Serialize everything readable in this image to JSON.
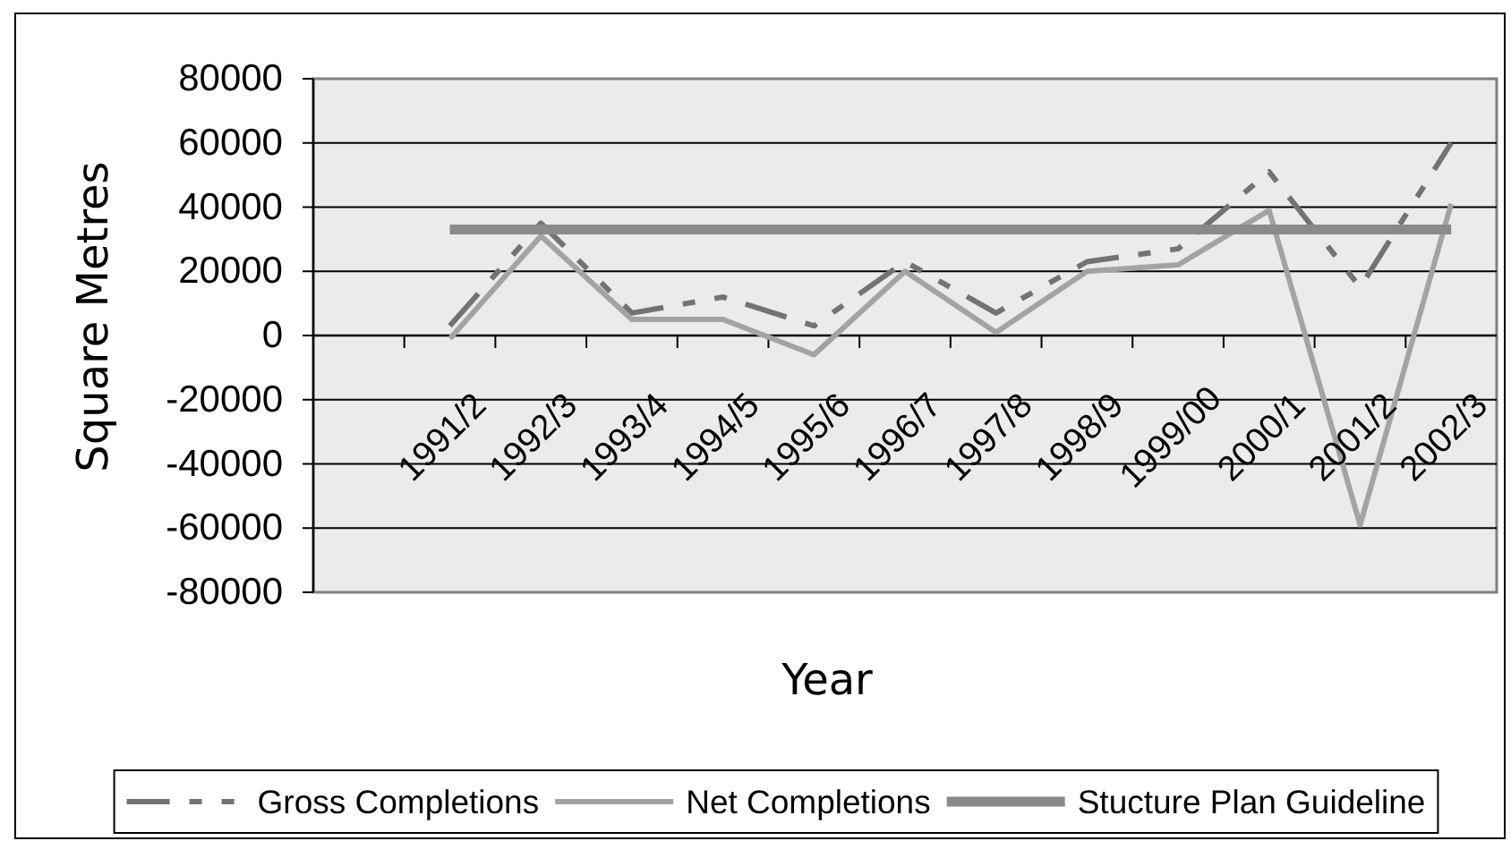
{
  "chart_data": {
    "type": "line",
    "xlabel": "Year",
    "ylabel": "Square Metres",
    "categories": [
      null,
      "1991/2",
      "1992/3",
      "1993/4",
      "1994/5",
      "1995/6",
      "1996/7",
      "1997/8",
      "1998/9",
      "1999/00",
      "2000/1",
      "2001/2",
      "2002/3"
    ],
    "series": [
      {
        "name": "Gross Completions",
        "color": "#737373",
        "line_style": "dashed",
        "values": [
          null,
          3000,
          35000,
          7000,
          12000,
          3000,
          23000,
          7000,
          23000,
          27000,
          51000,
          15000,
          60000
        ]
      },
      {
        "name": "Net Completions",
        "color": "#a3a3a3",
        "values": [
          null,
          -1000,
          31000,
          5000,
          5000,
          -6000,
          20000,
          1000,
          20000,
          22000,
          39000,
          -59000,
          41000
        ]
      },
      {
        "name": "Stucture Plan Guideline",
        "color": "#8a8a8a",
        "values": [
          null,
          33000,
          33000,
          33000,
          33000,
          33000,
          33000,
          33000,
          33000,
          33000,
          33000,
          33000,
          33000
        ]
      }
    ],
    "ylim": [
      -80000,
      80000
    ],
    "yticks": [
      -80000,
      -60000,
      -40000,
      -20000,
      0,
      20000,
      40000,
      60000,
      80000
    ],
    "grid": "y",
    "legend": "bottom"
  }
}
